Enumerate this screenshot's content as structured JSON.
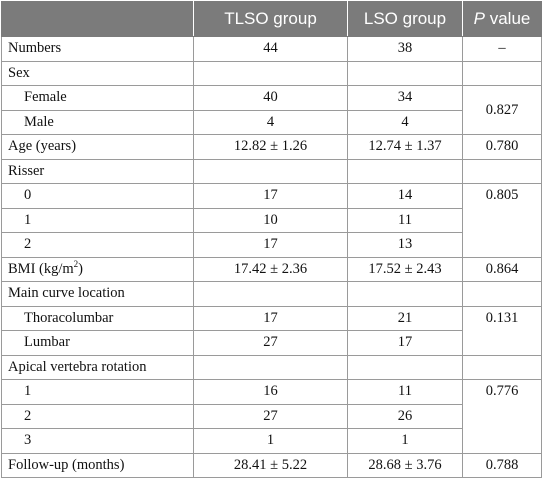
{
  "table": {
    "headers": {
      "col0": "",
      "col1": "TLSO group",
      "col2": "LSO group",
      "col3_italic": "P",
      "col3_rest": " value"
    },
    "rows": [
      {
        "label": "Numbers",
        "tlso": "44",
        "lso": "38",
        "p": "–"
      },
      {
        "label": "Sex",
        "tlso": "",
        "lso": "",
        "p": ""
      },
      {
        "label": "Female",
        "tlso": "40",
        "lso": "34",
        "p": "0.827"
      },
      {
        "label": "Male",
        "tlso": "4",
        "lso": "4"
      },
      {
        "label": "Age (years)",
        "tlso": "12.82 ± 1.26",
        "lso": "12.74 ± 1.37",
        "p": "0.780"
      },
      {
        "label": "Risser",
        "tlso": "",
        "lso": "",
        "p": ""
      },
      {
        "label": "0",
        "tlso": "17",
        "lso": "14",
        "p": "0.805"
      },
      {
        "label": "1",
        "tlso": "10",
        "lso": "11"
      },
      {
        "label": "2",
        "tlso": "17",
        "lso": "13"
      },
      {
        "label_main": "BMI (kg/m",
        "label_sup": "2",
        "label_tail": ")",
        "tlso": "17.42 ± 2.36",
        "lso": "17.52 ± 2.43",
        "p": "0.864"
      },
      {
        "label": "Main curve location",
        "tlso": "",
        "lso": "",
        "p": ""
      },
      {
        "label": "Thoracolumbar",
        "tlso": "17",
        "lso": "21",
        "p": "0.131"
      },
      {
        "label": "Lumbar",
        "tlso": "27",
        "lso": "17"
      },
      {
        "label": "Apical vertebra rotation",
        "tlso": "",
        "lso": "",
        "p": ""
      },
      {
        "label": "1",
        "tlso": "16",
        "lso": "11",
        "p": "0.776"
      },
      {
        "label": "2",
        "tlso": "27",
        "lso": "26"
      },
      {
        "label": "3",
        "tlso": "1",
        "lso": "1"
      },
      {
        "label": "Follow-up (months)",
        "tlso": "28.41 ± 5.22",
        "lso": "28.68 ± 3.76",
        "p": "0.788"
      }
    ]
  }
}
